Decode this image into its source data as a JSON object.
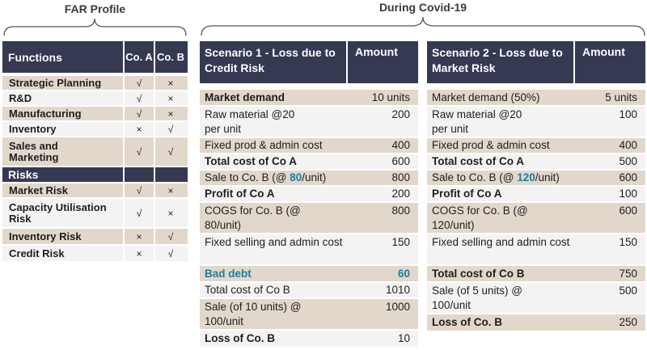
{
  "far_title": "FAR Profile",
  "covid_title": "During Covid-19",
  "far": {
    "functions_label": "Functions",
    "co_a": "Co. A",
    "co_b": "Co. B",
    "functions": [
      {
        "name": "Strategic Planning",
        "a": "√",
        "b": "×"
      },
      {
        "name": "R&D",
        "a": "√",
        "b": "×"
      },
      {
        "name": "Manufacturing",
        "a": "√",
        "b": "×"
      },
      {
        "name": "Inventory",
        "a": "×",
        "b": "√"
      },
      {
        "name": "Sales and Marketing",
        "a": "√",
        "b": "√"
      }
    ],
    "risks_label": "Risks",
    "risks": [
      {
        "name": "Market Risk",
        "a": "√",
        "b": "×"
      },
      {
        "name": "Capacity Utilisation Risk",
        "a": "√",
        "b": "×"
      },
      {
        "name": "Inventory Risk",
        "a": "×",
        "b": "√"
      },
      {
        "name": "Credit Risk",
        "a": "×",
        "b": "√"
      }
    ]
  },
  "scenario1": {
    "title": "Scenario 1 - Loss due to Credit Risk",
    "amount_label": "Amount",
    "rows": [
      {
        "label": "Market demand",
        "value": "10 units"
      },
      {
        "label": "Raw material @20 per unit",
        "value": "200"
      },
      {
        "label": "Fixed prod & admin cost",
        "value": "400"
      },
      {
        "label": "Total cost of Co A",
        "value": "600"
      },
      {
        "label_pre": "Sale to Co. B (@ ",
        "label_hi": "80",
        "label_post": "/unit)",
        "value": "800"
      },
      {
        "label": "Profit of Co A",
        "value": "200"
      },
      {
        "label": "COGS for Co. B (@ 80/unit)",
        "value": "800"
      },
      {
        "label": "Fixed selling and admin cost",
        "value": "150"
      },
      {
        "label": "Bad debt",
        "value": "60"
      },
      {
        "label": "Total cost of Co B",
        "value": "1010"
      },
      {
        "label": "Sale (of 10 units) @ 100/unit",
        "value": "1000"
      },
      {
        "label": "Loss of Co. B",
        "value": "10"
      }
    ]
  },
  "scenario2": {
    "title": "Scenario 2 - Loss due to Market Risk",
    "amount_label": "Amount",
    "rows": [
      {
        "label": "Market demand (50%)",
        "value": "5 units"
      },
      {
        "label": "Raw material @20 per unit",
        "value": "100"
      },
      {
        "label": "Fixed prod & admin cost",
        "value": "400"
      },
      {
        "label": "Total cost of Co A",
        "value": "500"
      },
      {
        "label_pre": "Sale to Co. B (@ ",
        "label_hi": "120",
        "label_post": "/unit)",
        "value": "600"
      },
      {
        "label": "Profit of Co A",
        "value": "100"
      },
      {
        "label": "COGS for Co. B (@ 120/unit)",
        "value": "600"
      },
      {
        "label": "Fixed selling and admin cost",
        "value": "150"
      },
      {
        "label": "Total cost of Co B",
        "value": "750"
      },
      {
        "label": "Sale (of 5 units) @ 100/unit",
        "value": "500"
      },
      {
        "label": "Loss of Co. B",
        "value": "250"
      }
    ]
  },
  "colors": {
    "header_navy": "#353952",
    "row_tan": "#e2d7cb",
    "row_light": "#f3f3f3",
    "highlight_teal": "#1a7fa0"
  }
}
